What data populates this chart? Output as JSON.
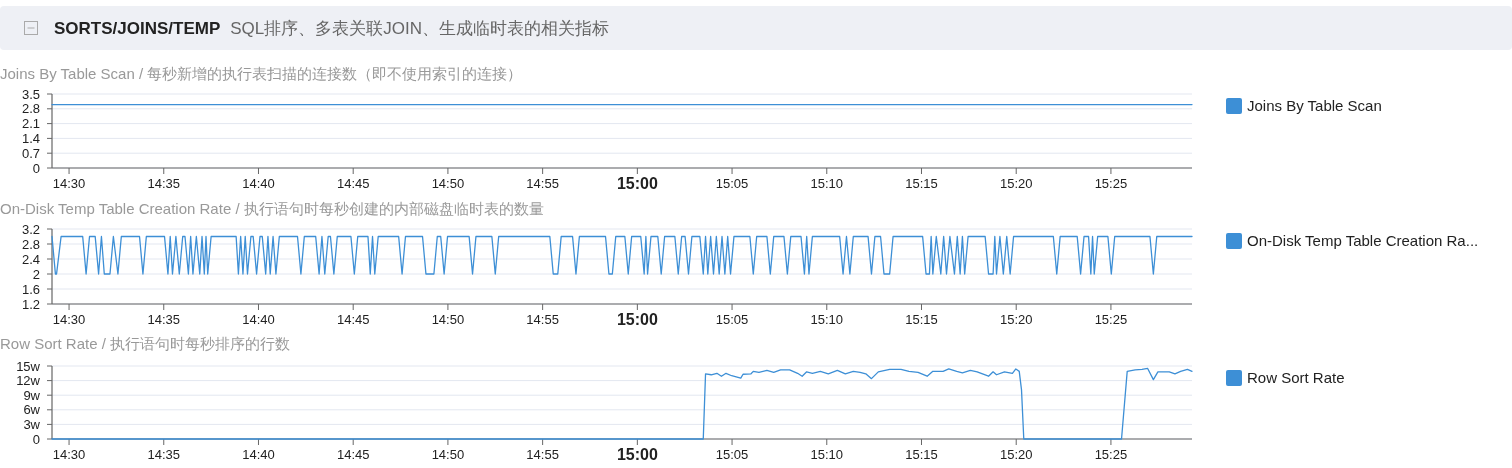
{
  "chart_data": [
    {
      "type": "line",
      "title": "Joins By Table Scan / 每秒新增的执行表扫描的连接数（即不使用索引的连接）",
      "annotations": [
        "SORTS/JOINS/TEMP",
        "SQL排序、多表关联JOIN、生成临时表的相关指标"
      ],
      "series": [
        {
          "name": "Joins By Table Scan",
          "color": "#3d8fd6",
          "x": [
            14.485,
            15.488
          ],
          "values": [
            3,
            3
          ]
        }
      ],
      "xlim": [
        14.485,
        15.488
      ],
      "ylim": [
        0,
        3.5
      ],
      "yticks": [
        0,
        0.7,
        1.4,
        2.1,
        2.8,
        3.5
      ],
      "xticks": [
        {
          "value": 14.5,
          "label": "14:30"
        },
        {
          "value": 14.583333,
          "label": "14:35"
        },
        {
          "value": 14.666667,
          "label": "14:40"
        },
        {
          "value": 14.75,
          "label": "14:45"
        },
        {
          "value": 14.833333,
          "label": "14:50"
        },
        {
          "value": 14.916667,
          "label": "14:55"
        },
        {
          "value": 15,
          "label": "**15:00**"
        },
        {
          "value": 15.083333,
          "label": "15:05"
        },
        {
          "value": 15.166667,
          "label": "15:10"
        },
        {
          "value": 15.25,
          "label": "15:15"
        },
        {
          "value": 15.333333,
          "label": "15:20"
        },
        {
          "value": 15.416667,
          "label": "15:25"
        }
      ],
      "grid": "y",
      "legend": "right",
      "marker": "none"
    },
    {
      "type": "line",
      "title": "On-Disk Temp Table Creation Rate / 执行语句时每秒创建的内部磁盘临时表的数量",
      "series": [
        {
          "name": "On-Disk Temp Table Creation Ra...",
          "color": "#3d8fd6",
          "x": [
            14.485,
            14.488,
            14.489,
            14.493,
            14.512,
            14.515,
            14.518,
            14.523,
            14.526,
            14.5285,
            14.531,
            14.536,
            14.539,
            14.543,
            14.546,
            14.562,
            14.565,
            14.568,
            14.584,
            14.587,
            14.589,
            14.591,
            14.594,
            14.597,
            14.6,
            14.602,
            14.605,
            14.607,
            14.609,
            14.612,
            14.615,
            14.617,
            14.619,
            14.6205,
            14.622,
            14.625,
            14.647,
            14.649,
            14.651,
            14.653,
            14.655,
            14.657,
            14.66,
            14.662,
            14.665,
            14.668,
            14.67,
            14.673,
            14.675,
            14.677,
            14.6795,
            14.682,
            14.685,
            14.701,
            14.704,
            14.707,
            14.717,
            14.72,
            14.7225,
            14.725,
            14.728,
            14.73,
            14.733,
            14.736,
            14.748,
            14.751,
            14.754,
            14.763,
            14.765,
            14.767,
            14.769,
            14.772,
            14.79,
            14.793,
            14.796,
            14.811,
            14.814,
            14.821,
            14.824,
            14.827,
            14.83,
            14.833,
            14.852,
            14.855,
            14.858,
            14.872,
            14.875,
            14.878,
            14.923,
            14.926,
            14.93,
            14.933,
            14.943,
            14.946,
            14.949,
            14.972,
            14.975,
            14.978,
            14.981,
            14.989,
            14.992,
            14.995,
            15.003,
            15.006,
            15.0075,
            15.009,
            15.012,
            15.018,
            15.021,
            15.024,
            15.033,
            15.036,
            15.039,
            15.042,
            15.045,
            15.048,
            15.055,
            15.058,
            15.06,
            15.062,
            15.0645,
            15.067,
            15.0695,
            15.072,
            15.0745,
            15.077,
            15.0795,
            15.082,
            15.085,
            15.099,
            15.102,
            15.105,
            15.114,
            15.117,
            15.12,
            15.129,
            15.132,
            15.135,
            15.144,
            15.147,
            15.149,
            15.151,
            15.154,
            15.178,
            15.181,
            15.184,
            15.187,
            15.19,
            15.203,
            15.206,
            15.209,
            15.214,
            15.217,
            15.222,
            15.225,
            15.251,
            15.254,
            15.257,
            15.2585,
            15.26,
            15.263,
            15.267,
            15.2695,
            15.272,
            15.275,
            15.279,
            15.2815,
            15.284,
            15.286,
            15.288,
            15.291,
            15.306,
            15.309,
            15.313,
            15.3145,
            15.316,
            15.319,
            15.322,
            15.325,
            15.328,
            15.331,
            15.366,
            15.369,
            15.372,
            15.387,
            15.39,
            15.393,
            15.397,
            15.399,
            15.4005,
            15.402,
            15.405,
            15.414,
            15.417,
            15.42,
            15.451,
            15.454,
            15.457,
            15.488
          ],
          "values": [
            3,
            2,
            2,
            3,
            3,
            2,
            3,
            3,
            2,
            3,
            2,
            2,
            3,
            2,
            3,
            3,
            2,
            3,
            3,
            2,
            3,
            2,
            3,
            2,
            3,
            3,
            2,
            3,
            2,
            3,
            2,
            3,
            2,
            3,
            2,
            3,
            3,
            2,
            3,
            2,
            3,
            2,
            3,
            3,
            2,
            3,
            3,
            2,
            3,
            2,
            3,
            2,
            3,
            3,
            2,
            3,
            3,
            2,
            3,
            2,
            3,
            3,
            2,
            3,
            3,
            2,
            3,
            3,
            2,
            3,
            2,
            3,
            3,
            2,
            3,
            3,
            2,
            2,
            3,
            3,
            2,
            3,
            3,
            2,
            3,
            3,
            2,
            3,
            3,
            2,
            2,
            3,
            3,
            2,
            3,
            3,
            2,
            2,
            3,
            3,
            2,
            3,
            3,
            2,
            3,
            2,
            3,
            3,
            2,
            3,
            3,
            2,
            3,
            3,
            2,
            3,
            3,
            2,
            3,
            2,
            3,
            2,
            3,
            2,
            3,
            2,
            3,
            2,
            3,
            3,
            2,
            3,
            3,
            2,
            3,
            3,
            2,
            3,
            3,
            2,
            3,
            2,
            3,
            3,
            2,
            3,
            2,
            3,
            3,
            2,
            3,
            3,
            2,
            2,
            3,
            3,
            2,
            2,
            3,
            2,
            3,
            2,
            3,
            2,
            3,
            2,
            3,
            2,
            3,
            2,
            3,
            3,
            2,
            2,
            3,
            2,
            3,
            2,
            3,
            2,
            3,
            3,
            2,
            3,
            3,
            2,
            3,
            3,
            2,
            3,
            2,
            3,
            3,
            2,
            3,
            3,
            2,
            3,
            3
          ]
        }
      ],
      "xlim": [
        14.485,
        15.488
      ],
      "ylim": [
        1.2,
        3.2
      ],
      "yticks": [
        1.2,
        1.6,
        2,
        2.4,
        2.8,
        3.2
      ],
      "xticks": [
        {
          "value": 14.5,
          "label": "14:30"
        },
        {
          "value": 14.583333,
          "label": "14:35"
        },
        {
          "value": 14.666667,
          "label": "14:40"
        },
        {
          "value": 14.75,
          "label": "14:45"
        },
        {
          "value": 14.833333,
          "label": "14:50"
        },
        {
          "value": 14.916667,
          "label": "14:55"
        },
        {
          "value": 15,
          "label": "**15:00**"
        },
        {
          "value": 15.083333,
          "label": "15:05"
        },
        {
          "value": 15.166667,
          "label": "15:10"
        },
        {
          "value": 15.25,
          "label": "15:15"
        },
        {
          "value": 15.333333,
          "label": "15:20"
        },
        {
          "value": 15.416667,
          "label": "15:25"
        }
      ],
      "grid": "y",
      "legend": "right",
      "marker": "none"
    },
    {
      "type": "line",
      "title": "Row Sort Rate / 执行语句时每秒排序的行数",
      "series": [
        {
          "name": "Row Sort Rate",
          "color": "#3d8fd6",
          "x": [
            14.485,
            15.058,
            15.06,
            15.065,
            15.07,
            15.074,
            15.078,
            15.083,
            15.091,
            15.093,
            15.1,
            15.102,
            15.107,
            15.114,
            15.12,
            15.126,
            15.134,
            15.141,
            15.145,
            15.149,
            15.154,
            15.161,
            15.168,
            15.176,
            15.183,
            15.19,
            15.196,
            15.201,
            15.206,
            15.212,
            15.222,
            15.232,
            15.239,
            15.247,
            15.255,
            15.26,
            15.269,
            15.274,
            15.281,
            15.286,
            15.293,
            15.299,
            15.309,
            15.313,
            15.316,
            15.323,
            15.33,
            15.333,
            15.336,
            15.338,
            15.34,
            15.426,
            15.431,
            15.438,
            15.444,
            15.449,
            15.454,
            15.458,
            15.468,
            15.473,
            15.478,
            15.484,
            15.488
          ],
          "values": [
            0,
            0,
            13.4,
            13.2,
            13.5,
            12.9,
            13.5,
            13.0,
            12.5,
            13.3,
            13.4,
            13.9,
            13.7,
            14.1,
            13.7,
            14.2,
            14.2,
            13.5,
            12.9,
            13.8,
            13.5,
            13.9,
            13.4,
            14.1,
            13.4,
            13.9,
            13.7,
            13.4,
            12.4,
            13.8,
            14.3,
            14.3,
            13.9,
            13.7,
            12.9,
            13.9,
            13.9,
            14.4,
            13.9,
            13.6,
            14.1,
            13.8,
            12.9,
            13.8,
            13.2,
            13.8,
            13.5,
            14.4,
            13.9,
            10.1,
            0,
            0,
            13.9,
            14.2,
            14.3,
            14.5,
            12.2,
            13.8,
            13.8,
            13.4,
            13.9,
            14.3,
            13.9
          ]
        }
      ],
      "xlim": [
        14.485,
        15.488
      ],
      "ylim": [
        0,
        15
      ],
      "yticks": [
        0,
        {
          "value": 3,
          "label": "3w"
        },
        {
          "value": 6,
          "label": "6w"
        },
        {
          "value": 9,
          "label": "9w"
        },
        {
          "value": 12,
          "label": "12w"
        },
        {
          "value": 15,
          "label": "15w"
        }
      ],
      "xticks": [
        {
          "value": 14.5,
          "label": "14:30"
        },
        {
          "value": 14.583333,
          "label": "14:35"
        },
        {
          "value": 14.666667,
          "label": "14:40"
        },
        {
          "value": 14.75,
          "label": "14:45"
        },
        {
          "value": 14.833333,
          "label": "14:50"
        },
        {
          "value": 14.916667,
          "label": "14:55"
        },
        {
          "value": 15,
          "label": "**15:00**"
        },
        {
          "value": 15.083333,
          "label": "15:05"
        },
        {
          "value": 15.166667,
          "label": "15:10"
        },
        {
          "value": 15.25,
          "label": "15:15"
        },
        {
          "value": 15.333333,
          "label": "15:20"
        },
        {
          "value": 15.416667,
          "label": "15:25"
        }
      ],
      "grid": "y",
      "legend": "right",
      "marker": "none"
    }
  ]
}
